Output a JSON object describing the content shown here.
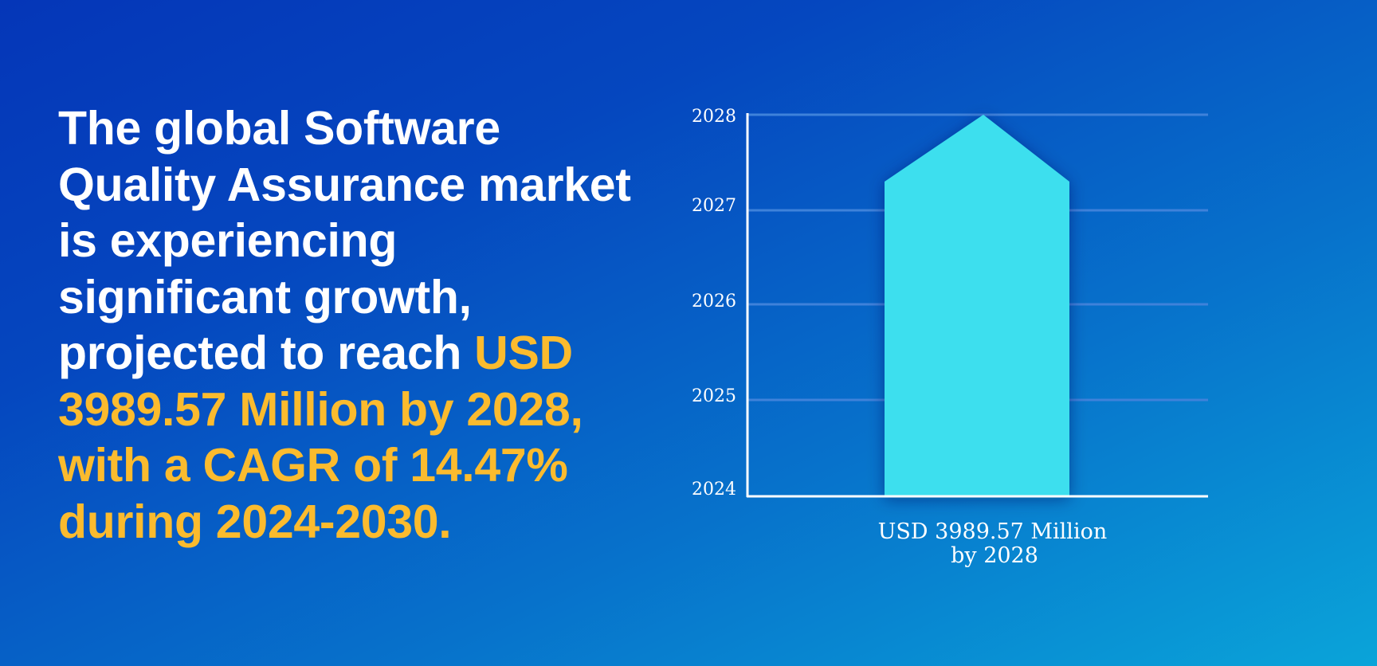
{
  "headline": {
    "plain": "The global Software Quality Assurance market is experiencing significant growth, projected to reach ",
    "highlight": "USD 3989.57 Million by 2028, with a CAGR of 14.47% during 2024-2030."
  },
  "colors": {
    "text": "#ffffff",
    "highlight": "#fbbb2e",
    "bar": "#3cdfee",
    "gridline": "#3f82da",
    "axis": "#ffffff"
  },
  "chart_data": {
    "type": "bar",
    "title": "",
    "xlabel": "",
    "ylabel": "",
    "y_ticks": [
      "2024",
      "2025",
      "2026",
      "2027",
      "2028"
    ],
    "ylim": [
      2024,
      2028
    ],
    "grid": true,
    "categories": [
      "USD 3989.57 Million by 2028"
    ],
    "category_label_lines": [
      "USD 3989.57 Million",
      "by 2028"
    ],
    "values": [
      2028
    ],
    "bar_shape": "arrow-up"
  }
}
